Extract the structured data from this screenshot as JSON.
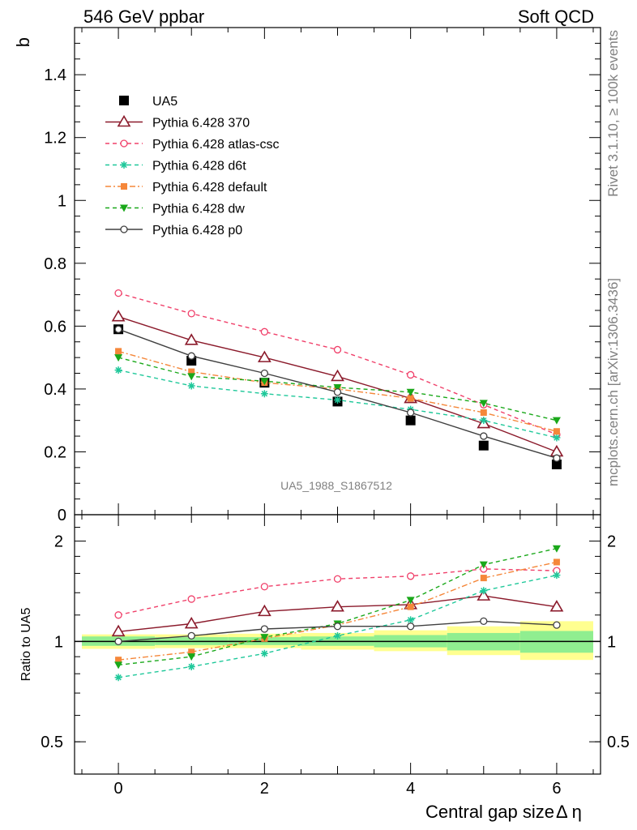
{
  "header": {
    "left": "546 GeV ppbar",
    "right": "Soft QCD"
  },
  "side_labels": {
    "rivet": "Rivet 3.1.10, ≥ 100k events",
    "mcplots": "mcplots.cern.ch [arXiv:1306.3436]"
  },
  "analysis_label": "UA5_1988_S1867512",
  "colors": {
    "ua5": "#000000",
    "p370": "#8b1a2b",
    "atlas": "#f0406a",
    "d6t": "#1fc89a",
    "default": "#f5873a",
    "dw": "#1aa81a",
    "p0": "#404040",
    "band_inner": "#90ee90",
    "band_outer": "#ffff90"
  },
  "chart_data": [
    {
      "type": "scatter",
      "ylabel": "b",
      "ylim": [
        0,
        1.55
      ],
      "xlim": [
        -0.6,
        6.6
      ],
      "x_ticks": [
        0,
        2,
        4,
        6
      ],
      "y_ticks": [
        0,
        0.2,
        0.4,
        0.6,
        0.8,
        1,
        1.2,
        1.4
      ],
      "y_tick_labels": [
        "0",
        "0.2",
        "0.4",
        "0.6",
        "0.8",
        "1",
        "1.2",
        "1.4"
      ],
      "legend_position": "top-left",
      "x": [
        0,
        1,
        2,
        3,
        4,
        5,
        6
      ],
      "series": [
        {
          "key": "ua5",
          "name": "UA5",
          "values": [
            0.59,
            0.49,
            0.42,
            0.36,
            0.3,
            0.22,
            0.16
          ]
        },
        {
          "key": "p370",
          "name": "Pythia 6.428 370",
          "values": [
            0.63,
            0.555,
            0.5,
            0.44,
            0.37,
            0.29,
            0.2
          ]
        },
        {
          "key": "atlas",
          "name": "Pythia 6.428 atlas-csc",
          "values": [
            0.705,
            0.64,
            0.582,
            0.525,
            0.445,
            0.35,
            0.255
          ]
        },
        {
          "key": "d6t",
          "name": "Pythia 6.428 d6t",
          "values": [
            0.46,
            0.41,
            0.385,
            0.365,
            0.335,
            0.3,
            0.245
          ]
        },
        {
          "key": "default",
          "name": "Pythia 6.428 default",
          "values": [
            0.52,
            0.455,
            0.42,
            0.4,
            0.37,
            0.325,
            0.265
          ]
        },
        {
          "key": "dw",
          "name": "Pythia 6.428 dw",
          "values": [
            0.5,
            0.44,
            0.425,
            0.405,
            0.39,
            0.355,
            0.3
          ]
        },
        {
          "key": "p0",
          "name": "Pythia 6.428 p0",
          "values": [
            0.59,
            0.505,
            0.45,
            0.39,
            0.325,
            0.25,
            0.18
          ]
        }
      ]
    },
    {
      "type": "line",
      "ylabel": "Ratio to UA5",
      "xlabel": "Central gap size",
      "xlabel_symbol": "Δ η",
      "ylim": [
        0.4,
        2.4
      ],
      "log_y": true,
      "xlim": [
        -0.6,
        6.6
      ],
      "x_ticks": [
        0,
        2,
        4,
        6
      ],
      "y_ticks": [
        0.5,
        1,
        2
      ],
      "y_tick_labels": [
        "0.5",
        "1",
        "2"
      ],
      "x": [
        0,
        1,
        2,
        3,
        4,
        5,
        6
      ],
      "bands": [
        {
          "x": [
            -0.5,
            0.5
          ],
          "inner": [
            0.97,
            1.035
          ],
          "outer": [
            0.95,
            1.05
          ]
        },
        {
          "x": [
            0.5,
            1.5
          ],
          "inner": [
            0.975,
            1.03
          ],
          "outer": [
            0.955,
            1.05
          ]
        },
        {
          "x": [
            1.5,
            2.5
          ],
          "inner": [
            0.975,
            1.03
          ],
          "outer": [
            0.955,
            1.055
          ]
        },
        {
          "x": [
            2.5,
            3.5
          ],
          "inner": [
            0.97,
            1.035
          ],
          "outer": [
            0.945,
            1.06
          ]
        },
        {
          "x": [
            3.5,
            4.5
          ],
          "inner": [
            0.96,
            1.045
          ],
          "outer": [
            0.935,
            1.08
          ]
        },
        {
          "x": [
            4.5,
            5.5
          ],
          "inner": [
            0.94,
            1.06
          ],
          "outer": [
            0.91,
            1.11
          ]
        },
        {
          "x": [
            5.5,
            6.5
          ],
          "inner": [
            0.925,
            1.075
          ],
          "outer": [
            0.88,
            1.15
          ]
        }
      ],
      "series": [
        {
          "key": "p370",
          "name": "Pythia 6.428 370",
          "values": [
            1.07,
            1.13,
            1.23,
            1.27,
            1.29,
            1.37,
            1.27
          ]
        },
        {
          "key": "atlas",
          "name": "Pythia 6.428 atlas-csc",
          "values": [
            1.2,
            1.34,
            1.46,
            1.54,
            1.57,
            1.65,
            1.63
          ]
        },
        {
          "key": "d6t",
          "name": "Pythia 6.428 d6t",
          "values": [
            0.78,
            0.84,
            0.92,
            1.04,
            1.16,
            1.42,
            1.58
          ]
        },
        {
          "key": "default",
          "name": "Pythia 6.428 default",
          "values": [
            0.88,
            0.93,
            1.02,
            1.12,
            1.27,
            1.55,
            1.73
          ]
        },
        {
          "key": "dw",
          "name": "Pythia 6.428 dw",
          "values": [
            0.85,
            0.9,
            1.03,
            1.13,
            1.33,
            1.7,
            1.9
          ]
        },
        {
          "key": "p0",
          "name": "Pythia 6.428 p0",
          "values": [
            1.0,
            1.04,
            1.09,
            1.11,
            1.11,
            1.15,
            1.12
          ]
        }
      ]
    }
  ]
}
